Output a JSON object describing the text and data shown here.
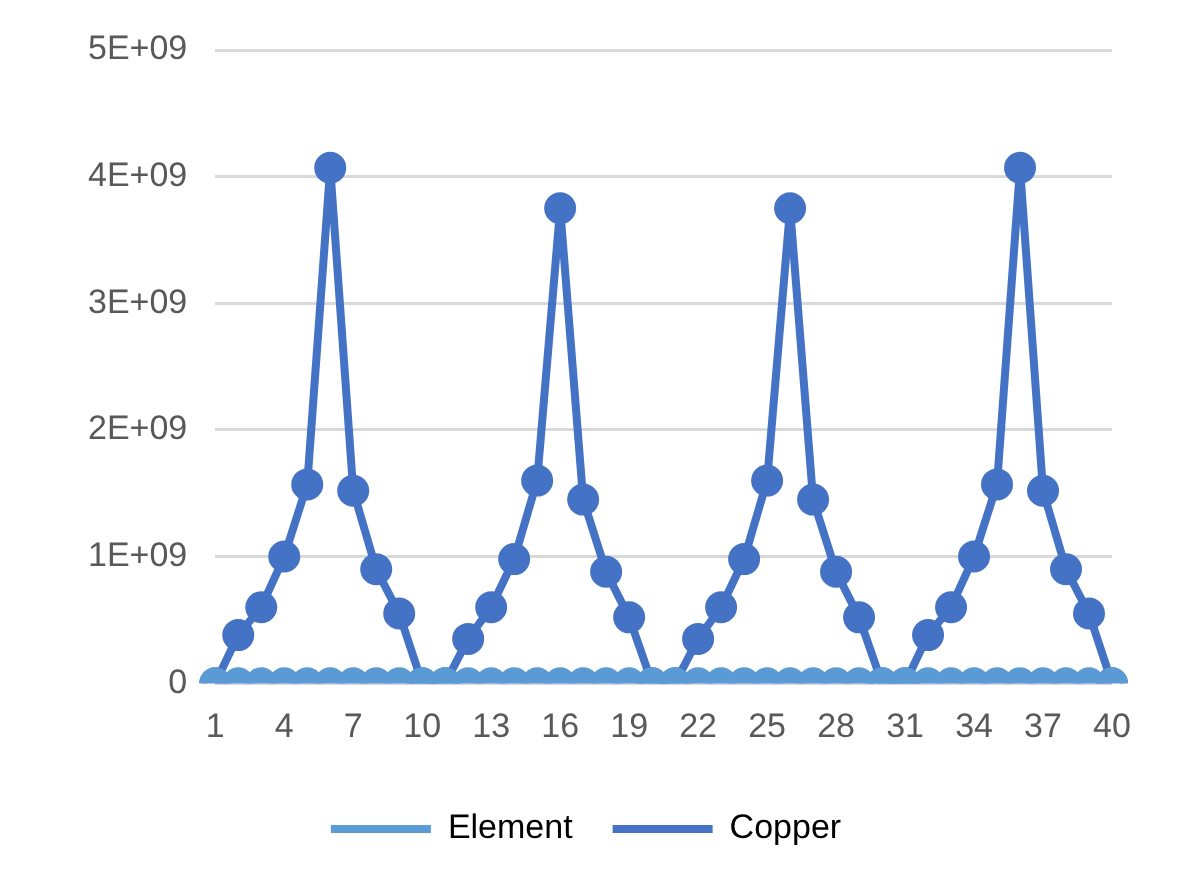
{
  "chart_data": {
    "type": "line",
    "categories": [
      "1",
      null,
      null,
      "4",
      null,
      null,
      "7",
      null,
      null,
      "10",
      null,
      null,
      "13",
      null,
      null,
      "16",
      null,
      null,
      "19",
      null,
      null,
      "22",
      null,
      null,
      "25",
      null,
      null,
      "28",
      null,
      null,
      "31",
      null,
      null,
      "34",
      null,
      null,
      "37",
      null,
      null,
      "40"
    ],
    "series": [
      {
        "name": "Element",
        "color": "#5b9bd5",
        "values": [
          0,
          0,
          0,
          0,
          0,
          0,
          0,
          0,
          0,
          0,
          0,
          0,
          0,
          0,
          0,
          0,
          0,
          0,
          0,
          0,
          0,
          0,
          0,
          0,
          0,
          0,
          0,
          0,
          0,
          0,
          0,
          0,
          0,
          0,
          0,
          0,
          0,
          0,
          0,
          0
        ]
      },
      {
        "name": "Copper",
        "color": "#4472c4",
        "values": [
          0,
          380000000,
          600000000,
          1000000000,
          1570000000,
          4070000000,
          1520000000,
          900000000,
          550000000,
          0,
          0,
          350000000,
          600000000,
          980000000,
          1600000000,
          3750000000,
          1450000000,
          880000000,
          520000000,
          0,
          0,
          350000000,
          600000000,
          980000000,
          1600000000,
          3750000000,
          1450000000,
          880000000,
          520000000,
          0,
          0,
          380000000,
          600000000,
          1000000000,
          1570000000,
          4070000000,
          1520000000,
          900000000,
          550000000,
          0
        ]
      }
    ],
    "ylim": [
      0,
      5000000000
    ],
    "yticks": [
      {
        "value": 0,
        "label": "0"
      },
      {
        "value": 1000000000,
        "label": "1E+09"
      },
      {
        "value": 2000000000,
        "label": "2E+09"
      },
      {
        "value": 3000000000,
        "label": "3E+09"
      },
      {
        "value": 4000000000,
        "label": "4E+09"
      },
      {
        "value": 5000000000,
        "label": "5E+09"
      }
    ],
    "grid": "y",
    "legend": "bottom",
    "marker": "circle",
    "line_style": "solid"
  }
}
